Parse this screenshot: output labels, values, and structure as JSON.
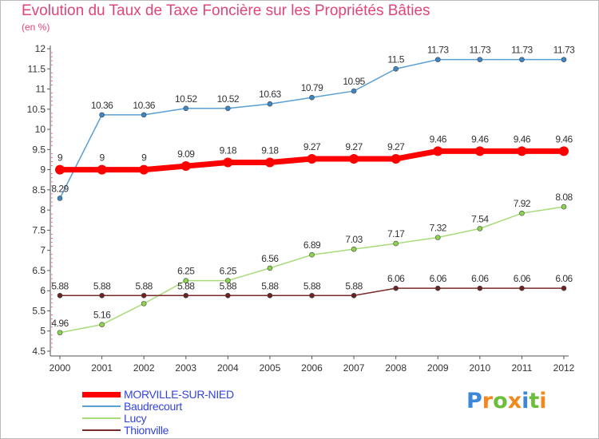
{
  "chart_data": {
    "type": "line",
    "title": "Evolution du Taux de Taxe Foncière sur les Propriétés Bâties",
    "subtitle": "(en %)",
    "xlabel": "",
    "ylabel": "",
    "ylim": [
      4.5,
      12
    ],
    "x": [
      "2000",
      "2001",
      "2002",
      "2003",
      "2004",
      "2005",
      "2006",
      "2007",
      "2008",
      "2009",
      "2010",
      "2011",
      "2012"
    ],
    "yticks": [
      "4.5",
      "5",
      "5.5",
      "6",
      "6.5",
      "7",
      "7.5",
      "8",
      "8.5",
      "9",
      "9.5",
      "10",
      "10.5",
      "11",
      "11.5",
      "12"
    ],
    "grid": false,
    "legend_position": "bottom-left",
    "series": [
      {
        "name": "Baudrecourt",
        "color": "#5a9fd4",
        "marker": "#3d86c6",
        "width": 1.5,
        "values": [
          8.29,
          10.36,
          10.36,
          10.52,
          10.52,
          10.63,
          10.79,
          10.95,
          11.5,
          11.73,
          11.73,
          11.73,
          11.73
        ],
        "labels": [
          "8.29",
          "10.36",
          "10.36",
          "10.52",
          "10.52",
          "10.63",
          "10.79",
          "10.95",
          "11.5",
          "11.73",
          "11.73",
          "11.73",
          "11.73"
        ]
      },
      {
        "name": "Lucy",
        "color": "#a8dc7a",
        "marker": "#8cd44c",
        "width": 1.5,
        "values": [
          4.96,
          5.16,
          5.68,
          6.25,
          6.25,
          6.56,
          6.89,
          7.03,
          7.17,
          7.32,
          7.54,
          7.92,
          8.08
        ],
        "labels": [
          "4.96",
          "5.16",
          "",
          "6.25",
          "6.25",
          "6.56",
          "6.89",
          "7.03",
          "7.17",
          "7.32",
          "7.54",
          "7.92",
          "8.08"
        ]
      },
      {
        "name": "Thionville",
        "color": "#7a2a2a",
        "marker": "#6b2222",
        "width": 1.5,
        "values": [
          5.88,
          5.88,
          5.88,
          5.88,
          5.88,
          5.88,
          5.88,
          5.88,
          6.06,
          6.06,
          6.06,
          6.06,
          6.06
        ],
        "labels": [
          "5.88",
          "5.88",
          "5.88",
          "5.88",
          "5.88",
          "5.88",
          "5.88",
          "5.88",
          "6.06",
          "6.06",
          "6.06",
          "6.06",
          "6.06"
        ]
      },
      {
        "name": "MORVILLE-SUR-NIED",
        "color": "#ff0000",
        "marker": "#ff0000",
        "width": 7,
        "values": [
          9,
          9,
          9,
          9.09,
          9.18,
          9.18,
          9.27,
          9.27,
          9.27,
          9.46,
          9.46,
          9.46,
          9.46
        ],
        "labels": [
          "9",
          "9",
          "9",
          "9.09",
          "9.18",
          "9.18",
          "9.27",
          "9.27",
          "9.27",
          "9.46",
          "9.46",
          "9.46",
          "9.46"
        ]
      }
    ],
    "legend": [
      {
        "name": "MORVILLE-SUR-NIED",
        "color": "#ff0000",
        "thick": true
      },
      {
        "name": "Baudrecourt",
        "color": "#5a9fd4",
        "thick": false
      },
      {
        "name": "Lucy",
        "color": "#a8dc7a",
        "thick": false
      },
      {
        "name": "Thionville",
        "color": "#7a2a2a",
        "thick": false
      }
    ]
  },
  "logo": {
    "text": "Proxiti"
  }
}
